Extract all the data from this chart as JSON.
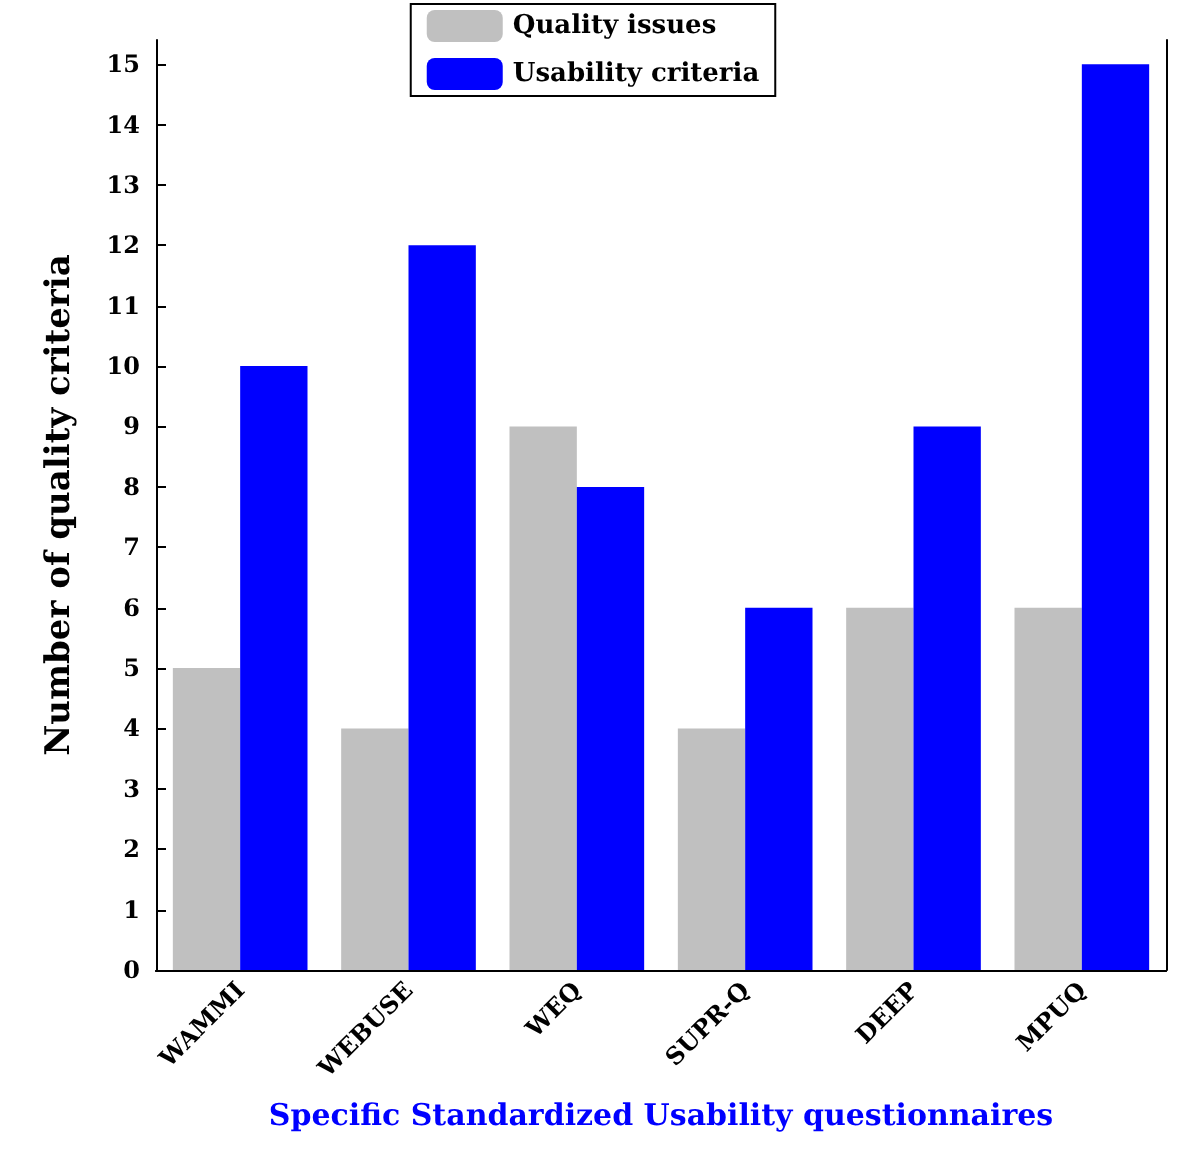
{
  "chart_data": {
    "type": "bar",
    "xlabel": "Specific Standardized Usability questionnaires",
    "ylabel": "Number of quality criteria",
    "categories": [
      "WAMMI",
      "WEBUSE",
      "WEQ",
      "SUPR-Q",
      "DEEP",
      "MPUQ"
    ],
    "series": [
      {
        "name": "Quality issues",
        "color": "#c0c0c0",
        "values": [
          5,
          4,
          9,
          4,
          6,
          6
        ]
      },
      {
        "name": "Usability criteria",
        "color": "#0000ff",
        "values": [
          10,
          12,
          8,
          6,
          9,
          15
        ]
      }
    ],
    "ylim": [
      0,
      15.4
    ],
    "yticks": [
      0,
      1,
      2,
      3,
      4,
      5,
      6,
      7,
      8,
      9,
      10,
      11,
      12,
      13,
      14,
      15
    ],
    "grid": false,
    "legend": "top"
  }
}
